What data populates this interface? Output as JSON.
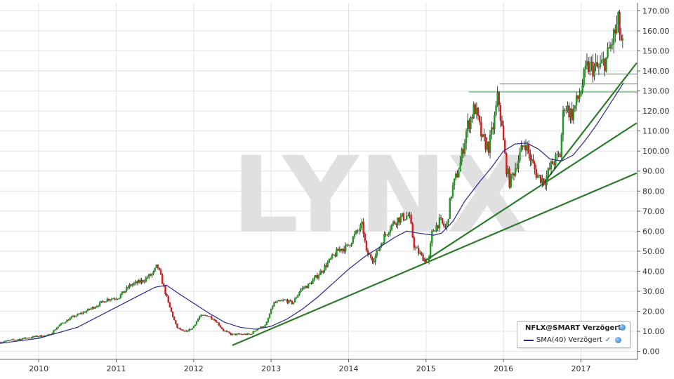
{
  "watermark": "LYNX",
  "legend": {
    "title": "NFLX@SMART Verzögert",
    "sma_label": "SMA(40) Verzögert",
    "check": "✓"
  },
  "chart_data": {
    "type": "candlestick",
    "title": "",
    "xlabel": "",
    "ylabel": "",
    "x_tick_labels": [
      "2010",
      "2011",
      "2012",
      "2013",
      "2014",
      "2015",
      "2016",
      "2017"
    ],
    "y_tick_labels": [
      "0.00",
      "10.00",
      "20.00",
      "30.00",
      "40.00",
      "50.00",
      "60.00",
      "70.00",
      "80.00",
      "90.00",
      "100.00",
      "110.00",
      "120.00",
      "130.00",
      "140.00",
      "150.00",
      "160.00",
      "170.00"
    ],
    "ylim": [
      -4,
      174
    ],
    "xlim": [
      2009.5,
      2017.73
    ],
    "grid": true,
    "y_axis_side": "right",
    "legend_position": "bottom-right",
    "price_path": [
      [
        2009.5,
        4.5
      ],
      [
        2009.75,
        6.0
      ],
      [
        2010.0,
        7.5
      ],
      [
        2010.15,
        8.0
      ],
      [
        2010.3,
        13.5
      ],
      [
        2010.45,
        17.0
      ],
      [
        2010.6,
        19.5
      ],
      [
        2010.75,
        22.5
      ],
      [
        2010.9,
        26.0
      ],
      [
        2011.05,
        27.0
      ],
      [
        2011.2,
        33.0
      ],
      [
        2011.35,
        35.0
      ],
      [
        2011.5,
        39.0
      ],
      [
        2011.55,
        43.0
      ],
      [
        2011.62,
        34.0
      ],
      [
        2011.7,
        23.0
      ],
      [
        2011.8,
        12.0
      ],
      [
        2011.9,
        9.5
      ],
      [
        2012.0,
        11.5
      ],
      [
        2012.1,
        17.5
      ],
      [
        2012.2,
        18.0
      ],
      [
        2012.3,
        15.5
      ],
      [
        2012.4,
        10.5
      ],
      [
        2012.5,
        8.5
      ],
      [
        2012.6,
        8.5
      ],
      [
        2012.75,
        8.5
      ],
      [
        2012.85,
        11.5
      ],
      [
        2012.95,
        13.0
      ],
      [
        2013.05,
        24.0
      ],
      [
        2013.2,
        25.5
      ],
      [
        2013.3,
        24.0
      ],
      [
        2013.4,
        31.0
      ],
      [
        2013.5,
        33.0
      ],
      [
        2013.6,
        37.0
      ],
      [
        2013.75,
        44.0
      ],
      [
        2013.9,
        51.0
      ],
      [
        2014.0,
        52.0
      ],
      [
        2014.1,
        58.0
      ],
      [
        2014.2,
        63.0
      ],
      [
        2014.25,
        49.0
      ],
      [
        2014.35,
        46.0
      ],
      [
        2014.45,
        55.0
      ],
      [
        2014.55,
        62.0
      ],
      [
        2014.65,
        66.0
      ],
      [
        2014.8,
        68.0
      ],
      [
        2014.87,
        52.0
      ],
      [
        2014.95,
        48.0
      ],
      [
        2015.05,
        44.0
      ],
      [
        2015.1,
        60.0
      ],
      [
        2015.2,
        65.0
      ],
      [
        2015.28,
        61.0
      ],
      [
        2015.35,
        80.0
      ],
      [
        2015.45,
        92.0
      ],
      [
        2015.55,
        112.0
      ],
      [
        2015.65,
        122.0
      ],
      [
        2015.75,
        105.0
      ],
      [
        2015.83,
        102.0
      ],
      [
        2015.9,
        115.0
      ],
      [
        2015.95,
        128.0
      ],
      [
        2016.0,
        111.0
      ],
      [
        2016.05,
        93.0
      ],
      [
        2016.1,
        84.0
      ],
      [
        2016.2,
        95.0
      ],
      [
        2016.3,
        105.0
      ],
      [
        2016.35,
        98.0
      ],
      [
        2016.45,
        88.0
      ],
      [
        2016.55,
        85.0
      ],
      [
        2016.65,
        94.0
      ],
      [
        2016.75,
        98.0
      ],
      [
        2016.8,
        124.0
      ],
      [
        2016.9,
        118.0
      ],
      [
        2017.0,
        128.0
      ],
      [
        2017.1,
        142.0
      ],
      [
        2017.25,
        141.0
      ],
      [
        2017.35,
        146.0
      ],
      [
        2017.45,
        158.0
      ],
      [
        2017.5,
        164.0
      ],
      [
        2017.55,
        152.0
      ]
    ],
    "sma_path": [
      [
        2009.5,
        4.0
      ],
      [
        2010.0,
        6.5
      ],
      [
        2010.5,
        12.0
      ],
      [
        2011.0,
        22.0
      ],
      [
        2011.3,
        28.0
      ],
      [
        2011.5,
        32.0
      ],
      [
        2011.65,
        33.0
      ],
      [
        2011.8,
        29.0
      ],
      [
        2012.0,
        24.0
      ],
      [
        2012.2,
        19.0
      ],
      [
        2012.4,
        14.5
      ],
      [
        2012.6,
        12.0
      ],
      [
        2012.8,
        11.0
      ],
      [
        2013.0,
        12.5
      ],
      [
        2013.2,
        16.0
      ],
      [
        2013.4,
        21.0
      ],
      [
        2013.6,
        27.0
      ],
      [
        2013.8,
        34.0
      ],
      [
        2014.0,
        41.0
      ],
      [
        2014.2,
        47.0
      ],
      [
        2014.4,
        52.0
      ],
      [
        2014.6,
        57.0
      ],
      [
        2014.75,
        60.0
      ],
      [
        2014.9,
        59.0
      ],
      [
        2015.1,
        58.0
      ],
      [
        2015.2,
        59.0
      ],
      [
        2015.35,
        65.0
      ],
      [
        2015.5,
        75.0
      ],
      [
        2015.7,
        85.0
      ],
      [
        2015.85,
        92.0
      ],
      [
        2016.0,
        100.0
      ],
      [
        2016.15,
        103.5
      ],
      [
        2016.3,
        104.0
      ],
      [
        2016.45,
        101.0
      ],
      [
        2016.6,
        96.0
      ],
      [
        2016.75,
        95.0
      ],
      [
        2016.9,
        98.0
      ],
      [
        2017.05,
        105.0
      ],
      [
        2017.2,
        113.0
      ],
      [
        2017.35,
        122.0
      ],
      [
        2017.5,
        131.0
      ],
      [
        2017.55,
        134.0
      ]
    ],
    "trend_lines": [
      {
        "from": [
          2012.5,
          3.0
        ],
        "to": [
          2017.72,
          89.0
        ]
      },
      {
        "from": [
          2014.98,
          45.0
        ],
        "to": [
          2017.72,
          114.0
        ]
      },
      {
        "from": [
          2016.5,
          83.0
        ],
        "to": [
          2017.72,
          144.0
        ]
      }
    ],
    "horizontal_lines": [
      {
        "y": 129.5,
        "x_start": 2015.55
      },
      {
        "y": 133.5,
        "x_start": 2015.95
      },
      {
        "y": 138.5,
        "x_start": 2017.1
      }
    ],
    "colors": {
      "up": "#1e9b1e",
      "down": "#cc1f1f",
      "wick": "#111111",
      "sma": "#2a2a8c",
      "trend": "#2d7a2d",
      "hline": "#3d9b3d",
      "grid": "#e2e2e2",
      "watermark": "#e0e0e0"
    }
  }
}
